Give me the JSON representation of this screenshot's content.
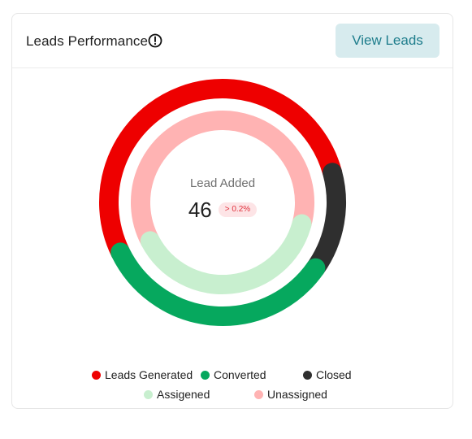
{
  "card": {
    "title": "Leads Performance",
    "info_icon": "info-circle-icon",
    "view_button_label": "View Leads"
  },
  "center": {
    "label": "Lead Added",
    "value": "46",
    "badge": "> 0.2%"
  },
  "legend": {
    "leads_generated": "Leads Generated",
    "converted": "Converted",
    "closed": "Closed",
    "assigned": "Assigened",
    "unassigned": "Unassigned"
  },
  "colors": {
    "leads_generated": "#ee0000",
    "converted": "#06a85e",
    "closed": "#2f2f2f",
    "assigned": "#c8efcf",
    "unassigned": "#ffb3b3",
    "accent": "#1e7d8c"
  },
  "chart_data": {
    "type": "doughnut",
    "rings": [
      {
        "ring": "outer",
        "segments": [
          {
            "name": "Leads Generated",
            "share_percent": 53
          },
          {
            "name": "Closed",
            "share_percent": 14
          },
          {
            "name": "Converted",
            "share_percent": 33
          }
        ]
      },
      {
        "ring": "inner",
        "segments": [
          {
            "name": "Unassigned",
            "share_percent": 62
          },
          {
            "name": "Assigened",
            "share_percent": 38
          }
        ]
      }
    ]
  }
}
